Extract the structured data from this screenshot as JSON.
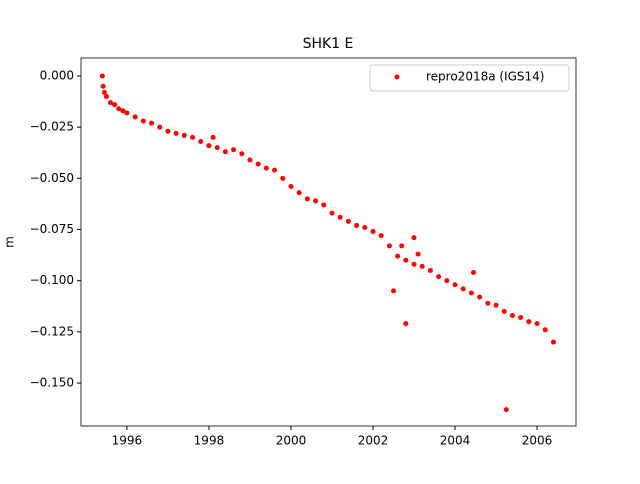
{
  "chart_data": {
    "type": "scatter",
    "title": "SHK1 E",
    "y_label": "m",
    "legend_position": "upper right",
    "xlim": [
      1994.88,
      2006.95
    ],
    "ylim": [
      -0.171,
      0.0088
    ],
    "xticks": [
      1996,
      1998,
      2000,
      2002,
      2004,
      2006
    ],
    "yticks": [
      {
        "value": 0,
        "label": "0.000"
      },
      {
        "value": -0.025,
        "label": "−0.025"
      },
      {
        "value": -0.05,
        "label": "−0.050"
      },
      {
        "value": -0.075,
        "label": "−0.075"
      },
      {
        "value": -0.1,
        "label": "−0.100"
      },
      {
        "value": -0.125,
        "label": "−0.125"
      },
      {
        "value": -0.15,
        "label": "−0.150"
      }
    ],
    "series": [
      {
        "name": "repro2018a (IGS14)",
        "color": "#ff0000",
        "x": [
          1995.4,
          1995.42,
          1995.45,
          1995.5,
          1995.6,
          1995.7,
          1995.8,
          1995.9,
          1996.0,
          1996.2,
          1996.4,
          1996.6,
          1996.8,
          1997.0,
          1997.2,
          1997.4,
          1997.6,
          1997.8,
          1998.0,
          1998.2,
          1998.4,
          1998.6,
          1998.8,
          1999.0,
          1999.2,
          1999.4,
          1999.6,
          1999.8,
          2000.0,
          2000.2,
          2000.4,
          2000.6,
          2000.8,
          2001.0,
          2001.2,
          2001.4,
          2001.6,
          2001.8,
          2002.0,
          2002.2,
          2002.4,
          2002.6,
          2002.8,
          2003.0,
          2003.2,
          2003.4,
          2003.6,
          2003.8,
          2004.0,
          2004.2,
          2004.4,
          2004.6,
          2004.8,
          2005.0,
          2005.2,
          2005.4,
          2005.6,
          2005.8,
          2006.0,
          2006.2,
          2006.4,
          2002.8,
          2005.25,
          2003.0,
          2002.5,
          2004.45,
          2002.7,
          2003.1,
          1998.1
        ],
        "values": [
          0.0,
          -0.005,
          -0.008,
          -0.01,
          -0.013,
          -0.014,
          -0.016,
          -0.017,
          -0.018,
          -0.02,
          -0.022,
          -0.023,
          -0.025,
          -0.027,
          -0.028,
          -0.029,
          -0.03,
          -0.032,
          -0.034,
          -0.035,
          -0.037,
          -0.036,
          -0.038,
          -0.041,
          -0.043,
          -0.045,
          -0.046,
          -0.05,
          -0.054,
          -0.057,
          -0.06,
          -0.061,
          -0.063,
          -0.067,
          -0.069,
          -0.071,
          -0.073,
          -0.074,
          -0.076,
          -0.078,
          -0.083,
          -0.088,
          -0.09,
          -0.092,
          -0.093,
          -0.095,
          -0.098,
          -0.1,
          -0.102,
          -0.104,
          -0.106,
          -0.108,
          -0.111,
          -0.112,
          -0.115,
          -0.117,
          -0.118,
          -0.12,
          -0.121,
          -0.124,
          -0.13,
          -0.121,
          -0.163,
          -0.079,
          -0.105,
          -0.096,
          -0.083,
          -0.087,
          -0.03
        ]
      }
    ]
  }
}
